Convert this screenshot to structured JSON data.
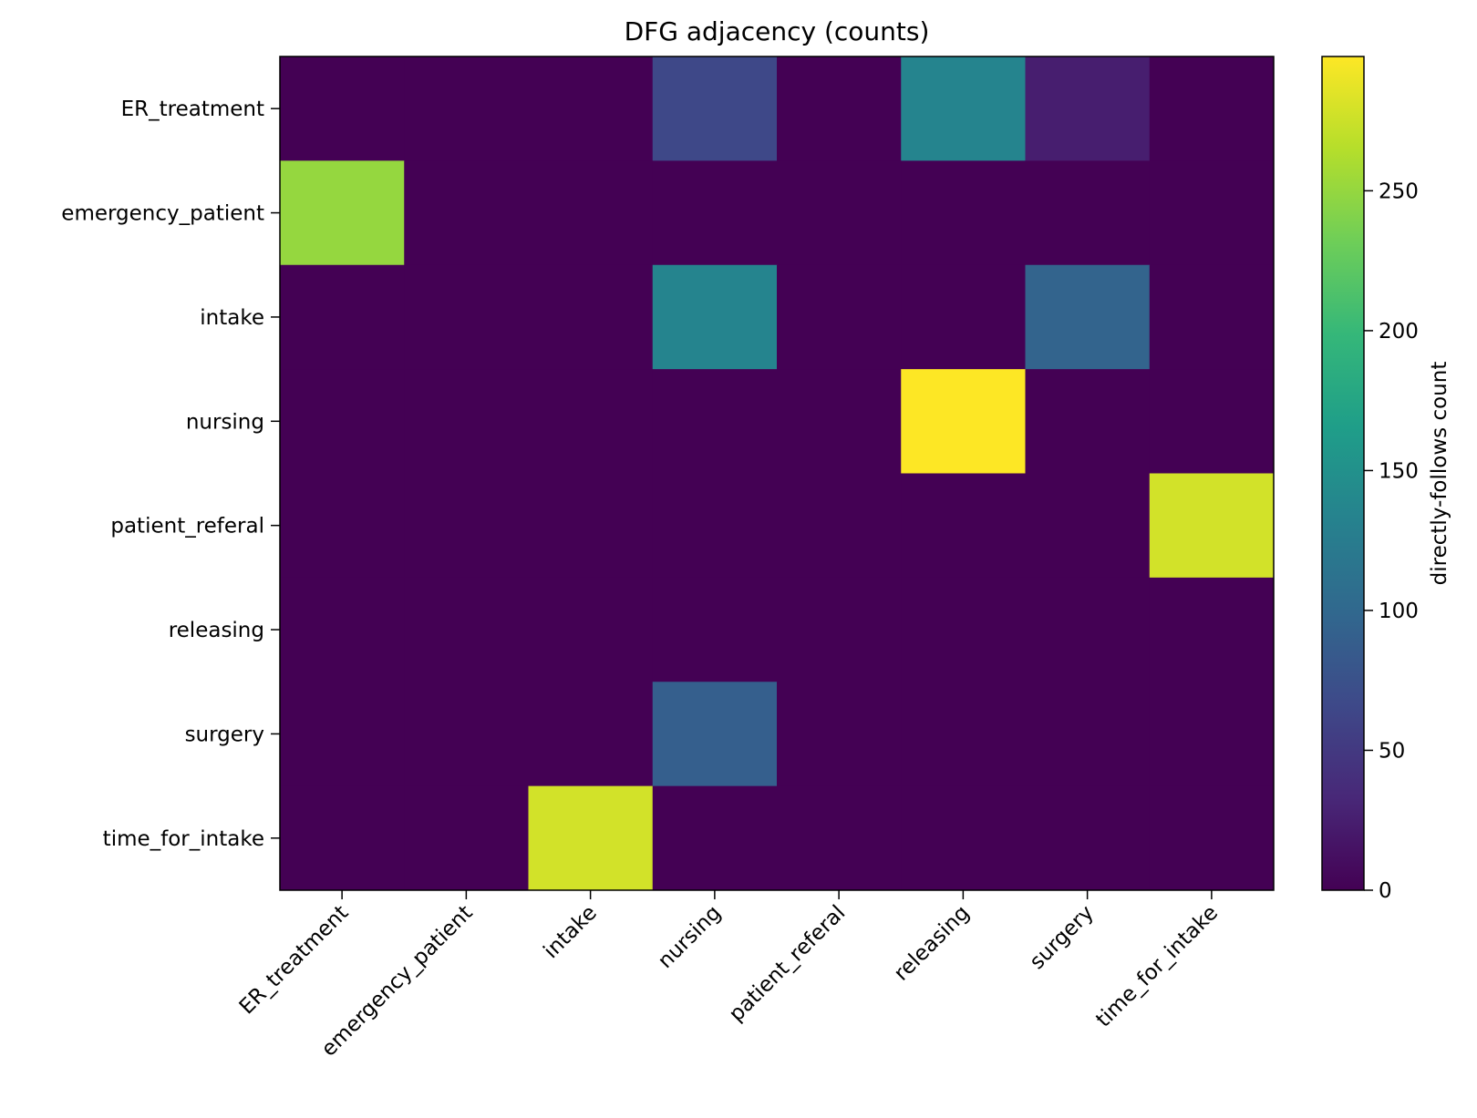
{
  "chart_data": {
    "type": "heatmap",
    "title": "DFG adjacency (counts)",
    "xlabel": "",
    "ylabel": "",
    "row_labels": [
      "ER_treatment",
      "emergency_patient",
      "intake",
      "nursing",
      "patient_referal",
      "releasing",
      "surgery",
      "time_for_intake"
    ],
    "col_labels": [
      "ER_treatment",
      "emergency_patient",
      "intake",
      "nursing",
      "patient_referal",
      "releasing",
      "surgery",
      "time_for_intake"
    ],
    "values": [
      [
        0,
        0,
        0,
        65,
        0,
        135,
        25,
        0
      ],
      [
        250,
        0,
        0,
        0,
        0,
        0,
        0,
        0
      ],
      [
        0,
        0,
        0,
        135,
        0,
        0,
        95,
        0
      ],
      [
        0,
        0,
        0,
        0,
        0,
        298,
        0,
        0
      ],
      [
        0,
        0,
        0,
        0,
        0,
        0,
        0,
        278
      ],
      [
        0,
        0,
        0,
        0,
        0,
        0,
        0,
        0
      ],
      [
        0,
        0,
        0,
        90,
        0,
        0,
        0,
        0
      ],
      [
        0,
        0,
        278,
        0,
        0,
        0,
        0,
        0
      ]
    ],
    "colormap": "viridis",
    "colorbar": {
      "label": "directly-follows count",
      "range": [
        0,
        298
      ],
      "ticks": [
        0,
        50,
        100,
        150,
        200,
        250
      ]
    }
  }
}
